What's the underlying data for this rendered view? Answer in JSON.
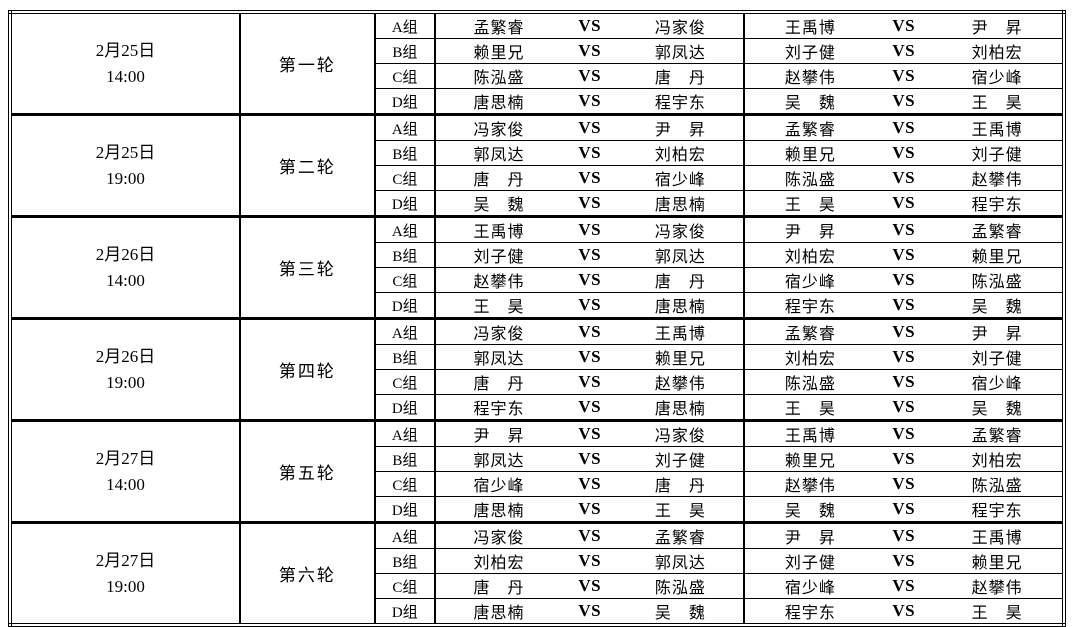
{
  "vs_label": "VS",
  "rounds": [
    {
      "date": "2月25日",
      "time": "14:00",
      "round": "第一轮",
      "groups": [
        {
          "group": "A组",
          "left": {
            "p1": "孟繁睿",
            "p2": "冯家俊"
          },
          "right": {
            "p1": "王禹博",
            "p2": "尹　昇"
          }
        },
        {
          "group": "B组",
          "left": {
            "p1": "赖里兄",
            "p2": "郭凤达"
          },
          "right": {
            "p1": "刘子健",
            "p2": "刘柏宏"
          }
        },
        {
          "group": "C组",
          "left": {
            "p1": "陈泓盛",
            "p2": "唐　丹"
          },
          "right": {
            "p1": "赵攀伟",
            "p2": "宿少峰"
          }
        },
        {
          "group": "D组",
          "left": {
            "p1": "唐思楠",
            "p2": "程宇东"
          },
          "right": {
            "p1": "吴　魏",
            "p2": "王　昊"
          }
        }
      ]
    },
    {
      "date": "2月25日",
      "time": "19:00",
      "round": "第二轮",
      "groups": [
        {
          "group": "A组",
          "left": {
            "p1": "冯家俊",
            "p2": "尹　昇"
          },
          "right": {
            "p1": "孟繁睿",
            "p2": "王禹博"
          }
        },
        {
          "group": "B组",
          "left": {
            "p1": "郭凤达",
            "p2": "刘柏宏"
          },
          "right": {
            "p1": "赖里兄",
            "p2": "刘子健"
          }
        },
        {
          "group": "C组",
          "left": {
            "p1": "唐　丹",
            "p2": "宿少峰"
          },
          "right": {
            "p1": "陈泓盛",
            "p2": "赵攀伟"
          }
        },
        {
          "group": "D组",
          "left": {
            "p1": "吴　魏",
            "p2": "唐思楠"
          },
          "right": {
            "p1": "王　昊",
            "p2": "程宇东"
          }
        }
      ]
    },
    {
      "date": "2月26日",
      "time": "14:00",
      "round": "第三轮",
      "groups": [
        {
          "group": "A组",
          "left": {
            "p1": "王禹博",
            "p2": "冯家俊"
          },
          "right": {
            "p1": "尹　昇",
            "p2": "孟繁睿"
          }
        },
        {
          "group": "B组",
          "left": {
            "p1": "刘子健",
            "p2": "郭凤达"
          },
          "right": {
            "p1": "刘柏宏",
            "p2": "赖里兄"
          }
        },
        {
          "group": "C组",
          "left": {
            "p1": "赵攀伟",
            "p2": "唐　丹"
          },
          "right": {
            "p1": "宿少峰",
            "p2": "陈泓盛"
          }
        },
        {
          "group": "D组",
          "left": {
            "p1": "王　昊",
            "p2": "唐思楠"
          },
          "right": {
            "p1": "程宇东",
            "p2": "吴　魏"
          }
        }
      ]
    },
    {
      "date": "2月26日",
      "time": "19:00",
      "round": "第四轮",
      "groups": [
        {
          "group": "A组",
          "left": {
            "p1": "冯家俊",
            "p2": "王禹博"
          },
          "right": {
            "p1": "孟繁睿",
            "p2": "尹　昇"
          }
        },
        {
          "group": "B组",
          "left": {
            "p1": "郭凤达",
            "p2": "赖里兄"
          },
          "right": {
            "p1": "刘柏宏",
            "p2": "刘子健"
          }
        },
        {
          "group": "C组",
          "left": {
            "p1": "唐　丹",
            "p2": "赵攀伟"
          },
          "right": {
            "p1": "陈泓盛",
            "p2": "宿少峰"
          }
        },
        {
          "group": "D组",
          "left": {
            "p1": "程宇东",
            "p2": "唐思楠"
          },
          "right": {
            "p1": "王　昊",
            "p2": "吴　魏"
          }
        }
      ]
    },
    {
      "date": "2月27日",
      "time": "14:00",
      "round": "第五轮",
      "groups": [
        {
          "group": "A组",
          "left": {
            "p1": "尹　昇",
            "p2": "冯家俊"
          },
          "right": {
            "p1": "王禹博",
            "p2": "孟繁睿"
          }
        },
        {
          "group": "B组",
          "left": {
            "p1": "郭凤达",
            "p2": "刘子健"
          },
          "right": {
            "p1": "赖里兄",
            "p2": "刘柏宏"
          }
        },
        {
          "group": "C组",
          "left": {
            "p1": "宿少峰",
            "p2": "唐　丹"
          },
          "right": {
            "p1": "赵攀伟",
            "p2": "陈泓盛"
          }
        },
        {
          "group": "D组",
          "left": {
            "p1": "唐思楠",
            "p2": "王　昊"
          },
          "right": {
            "p1": "吴　魏",
            "p2": "程宇东"
          }
        }
      ]
    },
    {
      "date": "2月27日",
      "time": "19:00",
      "round": "第六轮",
      "groups": [
        {
          "group": "A组",
          "left": {
            "p1": "冯家俊",
            "p2": "孟繁睿"
          },
          "right": {
            "p1": "尹　昇",
            "p2": "王禹博"
          }
        },
        {
          "group": "B组",
          "left": {
            "p1": "刘柏宏",
            "p2": "郭凤达"
          },
          "right": {
            "p1": "刘子健",
            "p2": "赖里兄"
          }
        },
        {
          "group": "C组",
          "left": {
            "p1": "唐　丹",
            "p2": "陈泓盛"
          },
          "right": {
            "p1": "宿少峰",
            "p2": "赵攀伟"
          }
        },
        {
          "group": "D组",
          "left": {
            "p1": "唐思楠",
            "p2": "吴　魏"
          },
          "right": {
            "p1": "程宇东",
            "p2": "王　昊"
          }
        }
      ]
    }
  ]
}
